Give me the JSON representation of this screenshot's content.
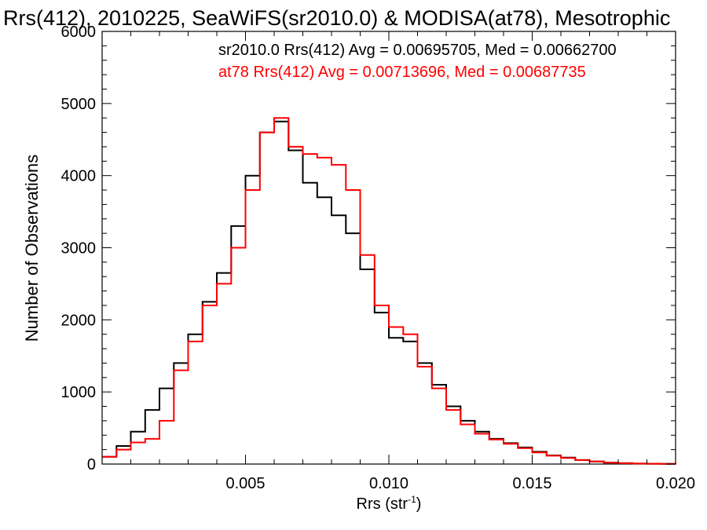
{
  "chart_data": {
    "type": "line",
    "step": true,
    "title": "Rrs(412), 2010225, SeaWiFS(sr2010.0) & MODISA(at78), Mesotrophic",
    "xlabel": "Rrs (str",
    "xlabel_sup": "-1",
    "xlabel_close": ")",
    "ylabel": "Number of Observations",
    "xlim": [
      0.0,
      0.02
    ],
    "ylim": [
      0,
      6000
    ],
    "xticks": [
      {
        "v": 0.005,
        "label": "0.005"
      },
      {
        "v": 0.01,
        "label": "0.010"
      },
      {
        "v": 0.015,
        "label": "0.015"
      },
      {
        "v": 0.02,
        "label": "0.020"
      }
    ],
    "yticks": [
      {
        "v": 0,
        "label": "0"
      },
      {
        "v": 1000,
        "label": "1000"
      },
      {
        "v": 2000,
        "label": "2000"
      },
      {
        "v": 3000,
        "label": "3000"
      },
      {
        "v": 4000,
        "label": "4000"
      },
      {
        "v": 5000,
        "label": "5000"
      },
      {
        "v": 6000,
        "label": "6000"
      }
    ],
    "grid": false,
    "legend_placement": "top-right",
    "series": [
      {
        "name": "sr2010.0",
        "label": "sr2010.0 Rrs(412) Avg = 0.00695705, Med = 0.00662700",
        "color": "#000000",
        "points": [
          [
            0.0,
            100
          ],
          [
            0.0005,
            250
          ],
          [
            0.001,
            450
          ],
          [
            0.0015,
            750
          ],
          [
            0.002,
            1050
          ],
          [
            0.0025,
            1400
          ],
          [
            0.003,
            1800
          ],
          [
            0.0035,
            2250
          ],
          [
            0.004,
            2650
          ],
          [
            0.0045,
            3300
          ],
          [
            0.005,
            4000
          ],
          [
            0.0055,
            4600
          ],
          [
            0.006,
            4750
          ],
          [
            0.0065,
            4350
          ],
          [
            0.007,
            3900
          ],
          [
            0.0075,
            3700
          ],
          [
            0.008,
            3450
          ],
          [
            0.0085,
            3200
          ],
          [
            0.009,
            2700
          ],
          [
            0.0095,
            2100
          ],
          [
            0.01,
            1750
          ],
          [
            0.0105,
            1700
          ],
          [
            0.011,
            1400
          ],
          [
            0.0115,
            1100
          ],
          [
            0.012,
            800
          ],
          [
            0.0125,
            600
          ],
          [
            0.013,
            450
          ],
          [
            0.0135,
            350
          ],
          [
            0.014,
            290
          ],
          [
            0.0145,
            230
          ],
          [
            0.015,
            170
          ],
          [
            0.0155,
            120
          ],
          [
            0.016,
            90
          ],
          [
            0.0165,
            55
          ],
          [
            0.017,
            35
          ],
          [
            0.0175,
            20
          ],
          [
            0.018,
            12
          ],
          [
            0.0185,
            7
          ],
          [
            0.019,
            4
          ],
          [
            0.0195,
            2
          ],
          [
            0.02,
            1
          ]
        ]
      },
      {
        "name": "at78",
        "label": "at78 Rrs(412) Avg = 0.00713696, Med = 0.00687735",
        "color": "#ff0000",
        "points": [
          [
            0.0,
            100
          ],
          [
            0.0005,
            200
          ],
          [
            0.001,
            300
          ],
          [
            0.0015,
            350
          ],
          [
            0.002,
            600
          ],
          [
            0.0025,
            1300
          ],
          [
            0.003,
            1700
          ],
          [
            0.0035,
            2200
          ],
          [
            0.004,
            2500
          ],
          [
            0.0045,
            3000
          ],
          [
            0.005,
            3800
          ],
          [
            0.0055,
            4600
          ],
          [
            0.006,
            4800
          ],
          [
            0.0065,
            4400
          ],
          [
            0.007,
            4300
          ],
          [
            0.0075,
            4250
          ],
          [
            0.008,
            4150
          ],
          [
            0.0085,
            3800
          ],
          [
            0.009,
            2900
          ],
          [
            0.0095,
            2200
          ],
          [
            0.01,
            1900
          ],
          [
            0.0105,
            1800
          ],
          [
            0.011,
            1350
          ],
          [
            0.0115,
            1050
          ],
          [
            0.012,
            750
          ],
          [
            0.0125,
            550
          ],
          [
            0.013,
            420
          ],
          [
            0.0135,
            340
          ],
          [
            0.014,
            280
          ],
          [
            0.0145,
            220
          ],
          [
            0.015,
            160
          ],
          [
            0.0155,
            115
          ],
          [
            0.016,
            85
          ],
          [
            0.0165,
            55
          ],
          [
            0.017,
            35
          ],
          [
            0.0175,
            20
          ],
          [
            0.018,
            12
          ],
          [
            0.0185,
            7
          ],
          [
            0.019,
            4
          ],
          [
            0.0195,
            2
          ],
          [
            0.02,
            1
          ]
        ]
      }
    ]
  }
}
